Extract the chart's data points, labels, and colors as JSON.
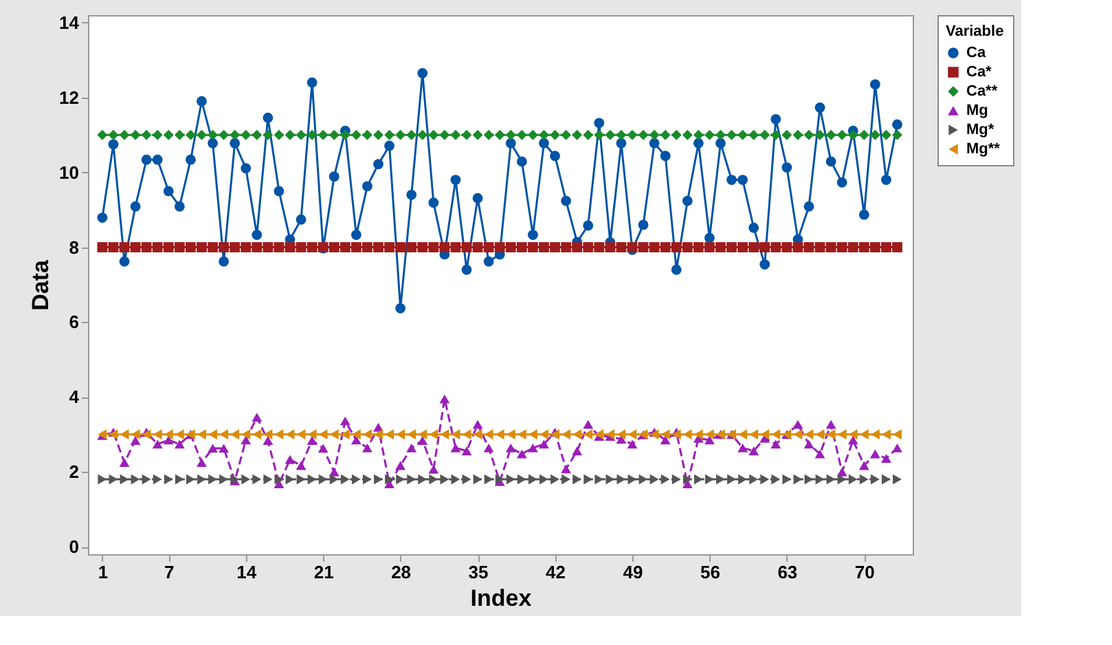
{
  "chart_data": {
    "type": "line",
    "xlabel": "Index",
    "ylabel": "Data",
    "legend_title": "Variable",
    "x": [
      1,
      2,
      3,
      4,
      5,
      6,
      7,
      8,
      9,
      10,
      11,
      12,
      13,
      14,
      15,
      16,
      17,
      18,
      19,
      20,
      21,
      22,
      23,
      24,
      25,
      26,
      27,
      28,
      29,
      30,
      31,
      32,
      33,
      34,
      35,
      36,
      37,
      38,
      39,
      40,
      41,
      42,
      43,
      44,
      45,
      46,
      47,
      48,
      49,
      50,
      51,
      52,
      53,
      54,
      55,
      56,
      57,
      58,
      59,
      60,
      61,
      62,
      63,
      64,
      65,
      66,
      67,
      68,
      69,
      70,
      71,
      72,
      73
    ],
    "xlim": [
      -0.3,
      74.4
    ],
    "xticks": [
      1,
      7,
      14,
      21,
      28,
      35,
      42,
      49,
      56,
      63,
      70
    ],
    "ylim": [
      -0.2,
      14.2
    ],
    "yticks": [
      0,
      2,
      4,
      6,
      8,
      10,
      12,
      14
    ],
    "grid": false,
    "legend": "right",
    "series": [
      {
        "name": "Ca",
        "color": "#0054a6",
        "marker": "circle",
        "line_style": "solid",
        "values": [
          8.79,
          10.75,
          7.62,
          9.09,
          10.34,
          10.34,
          9.5,
          9.09,
          10.34,
          11.9,
          10.78,
          7.62,
          10.78,
          10.11,
          8.33,
          11.46,
          9.5,
          8.21,
          8.74,
          12.4,
          7.97,
          9.89,
          11.11,
          8.33,
          9.63,
          10.22,
          10.71,
          6.37,
          9.4,
          12.65,
          9.19,
          7.81,
          9.8,
          7.4,
          9.31,
          7.62,
          7.81,
          10.78,
          10.29,
          8.33,
          10.78,
          10.44,
          9.24,
          8.14,
          8.58,
          11.32,
          8.13,
          10.78,
          7.93,
          8.6,
          10.78,
          10.44,
          7.4,
          9.24,
          10.78,
          8.25,
          10.78,
          9.8,
          9.8,
          8.52,
          7.54,
          11.42,
          10.13,
          8.21,
          9.09,
          11.73,
          10.29,
          9.73,
          11.11,
          8.87,
          12.35,
          9.8,
          11.28
        ]
      },
      {
        "name": "Ca*",
        "color": "#9e1b1b",
        "marker": "square",
        "line_style": "solid",
        "values": [
          8,
          8,
          8,
          8,
          8,
          8,
          8,
          8,
          8,
          8,
          8,
          8,
          8,
          8,
          8,
          8,
          8,
          8,
          8,
          8,
          8,
          8,
          8,
          8,
          8,
          8,
          8,
          8,
          8,
          8,
          8,
          8,
          8,
          8,
          8,
          8,
          8,
          8,
          8,
          8,
          8,
          8,
          8,
          8,
          8,
          8,
          8,
          8,
          8,
          8,
          8,
          8,
          8,
          8,
          8,
          8,
          8,
          8,
          8,
          8,
          8,
          8,
          8,
          8,
          8,
          8,
          8,
          8,
          8,
          8,
          8,
          8,
          8
        ]
      },
      {
        "name": "Ca**",
        "color": "#1a8a2a",
        "marker": "diamond",
        "line_style": "dashed",
        "values": [
          11,
          11,
          11,
          11,
          11,
          11,
          11,
          11,
          11,
          11,
          11,
          11,
          11,
          11,
          11,
          11,
          11,
          11,
          11,
          11,
          11,
          11,
          11,
          11,
          11,
          11,
          11,
          11,
          11,
          11,
          11,
          11,
          11,
          11,
          11,
          11,
          11,
          11,
          11,
          11,
          11,
          11,
          11,
          11,
          11,
          11,
          11,
          11,
          11,
          11,
          11,
          11,
          11,
          11,
          11,
          11,
          11,
          11,
          11,
          11,
          11,
          11,
          11,
          11,
          11,
          11,
          11,
          11,
          11,
          11,
          11,
          11,
          11
        ]
      },
      {
        "name": "Mg",
        "color": "#9b1fb8",
        "marker": "triangle",
        "line_style": "dashed",
        "values": [
          2.97,
          3.06,
          2.25,
          2.84,
          3.06,
          2.74,
          2.85,
          2.74,
          3.0,
          2.25,
          2.63,
          2.63,
          1.76,
          2.85,
          3.46,
          2.84,
          1.68,
          2.33,
          2.17,
          2.84,
          2.63,
          2.0,
          3.36,
          2.85,
          2.64,
          3.19,
          1.68,
          2.17,
          2.64,
          2.84,
          2.07,
          3.95,
          2.64,
          2.56,
          3.27,
          2.64,
          1.74,
          2.64,
          2.48,
          2.64,
          2.74,
          3.06,
          2.08,
          2.56,
          3.27,
          2.95,
          2.95,
          2.87,
          2.74,
          2.99,
          3.06,
          2.85,
          3.06,
          1.68,
          2.9,
          2.85,
          3.0,
          3.0,
          2.64,
          2.56,
          2.9,
          2.74,
          3.0,
          3.27,
          2.74,
          2.48,
          3.27,
          2.0,
          2.85,
          2.17,
          2.48,
          2.36,
          2.64
        ]
      },
      {
        "name": "Mg*",
        "color": "#555555",
        "marker": "triangle-right",
        "line_style": "dashed",
        "values": [
          1.8,
          1.8,
          1.8,
          1.8,
          1.8,
          1.8,
          1.8,
          1.8,
          1.8,
          1.8,
          1.8,
          1.8,
          1.8,
          1.8,
          1.8,
          1.8,
          1.8,
          1.8,
          1.8,
          1.8,
          1.8,
          1.8,
          1.8,
          1.8,
          1.8,
          1.8,
          1.8,
          1.8,
          1.8,
          1.8,
          1.8,
          1.8,
          1.8,
          1.8,
          1.8,
          1.8,
          1.8,
          1.8,
          1.8,
          1.8,
          1.8,
          1.8,
          1.8,
          1.8,
          1.8,
          1.8,
          1.8,
          1.8,
          1.8,
          1.8,
          1.8,
          1.8,
          1.8,
          1.8,
          1.8,
          1.8,
          1.8,
          1.8,
          1.8,
          1.8,
          1.8,
          1.8,
          1.8,
          1.8,
          1.8,
          1.8,
          1.8,
          1.8,
          1.8,
          1.8,
          1.8,
          1.8,
          1.8
        ]
      },
      {
        "name": "Mg**",
        "color": "#d98c0a",
        "marker": "triangle-left",
        "line_style": "solid",
        "values": [
          3,
          3,
          3,
          3,
          3,
          3,
          3,
          3,
          3,
          3,
          3,
          3,
          3,
          3,
          3,
          3,
          3,
          3,
          3,
          3,
          3,
          3,
          3,
          3,
          3,
          3,
          3,
          3,
          3,
          3,
          3,
          3,
          3,
          3,
          3,
          3,
          3,
          3,
          3,
          3,
          3,
          3,
          3,
          3,
          3,
          3,
          3,
          3,
          3,
          3,
          3,
          3,
          3,
          3,
          3,
          3,
          3,
          3,
          3,
          3,
          3,
          3,
          3,
          3,
          3,
          3,
          3,
          3,
          3,
          3,
          3,
          3,
          3
        ]
      }
    ]
  }
}
